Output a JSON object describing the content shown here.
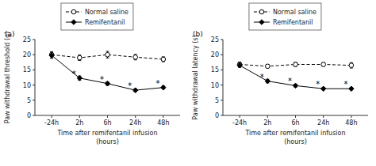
{
  "chart_data": [
    {
      "type": "line",
      "title": "(a)",
      "ylabel": "Paw withdrawal threshold (g)",
      "xlabel": [
        "Time after remifentanil infusion",
        "(hours)"
      ],
      "categories": [
        "-24h",
        "2h",
        "6h",
        "24h",
        "48h"
      ],
      "series": [
        {
          "name": "Normal saline",
          "color": "black",
          "marker": "open-circle",
          "line_style": "dashed",
          "values": [
            20.0,
            19.0,
            20.0,
            19.2,
            18.5
          ],
          "errors": [
            1.0,
            0.9,
            1.1,
            0.9,
            0.8
          ]
        },
        {
          "name": "Remifentanil",
          "color": "black",
          "marker": "diamond",
          "line_style": "solid",
          "values": [
            19.8,
            12.3,
            10.5,
            8.3,
            9.2
          ],
          "errors": [
            1.0,
            0.7,
            0.6,
            0.5,
            0.5
          ]
        }
      ],
      "annotations": [
        {
          "text": "*",
          "series": "Remifentanil",
          "category": "2h"
        },
        {
          "text": "*",
          "series": "Remifentanil",
          "category": "6h"
        },
        {
          "text": "*",
          "series": "Remifentanil",
          "category": "24h"
        },
        {
          "text": "*",
          "series": "Remifentanil",
          "category": "48h"
        }
      ],
      "ylim": [
        0,
        25
      ],
      "yticks": [
        0,
        5,
        10,
        15,
        20,
        25
      ],
      "legend": "top",
      "grid": false
    },
    {
      "type": "line",
      "title": "(b)",
      "ylabel": "Paw withdrawal latency (s)",
      "xlabel": [
        "Time after remifentanil infusion",
        "(hours)"
      ],
      "categories": [
        "-24h",
        "2h",
        "6h",
        "24h",
        "48h"
      ],
      "series": [
        {
          "name": "Normal saline",
          "color": "black",
          "marker": "open-circle",
          "line_style": "dashed",
          "values": [
            16.8,
            16.2,
            16.8,
            16.8,
            16.5
          ],
          "errors": [
            0.8,
            0.6,
            0.7,
            0.6,
            0.9
          ]
        },
        {
          "name": "Remifentanil",
          "color": "black",
          "marker": "diamond",
          "line_style": "solid",
          "values": [
            16.5,
            11.3,
            9.8,
            8.8,
            8.8
          ],
          "errors": [
            0.7,
            0.6,
            0.5,
            0.4,
            0.4
          ]
        }
      ],
      "annotations": [
        {
          "text": "*",
          "series": "Remifentanil",
          "category": "2h"
        },
        {
          "text": "*",
          "series": "Remifentanil",
          "category": "6h"
        },
        {
          "text": "*",
          "series": "Remifentanil",
          "category": "24h"
        },
        {
          "text": "*",
          "series": "Remifentanil",
          "category": "48h"
        }
      ],
      "ylim": [
        0,
        25
      ],
      "yticks": [
        0,
        5,
        10,
        15,
        20,
        25
      ],
      "legend": "top",
      "grid": false
    }
  ]
}
